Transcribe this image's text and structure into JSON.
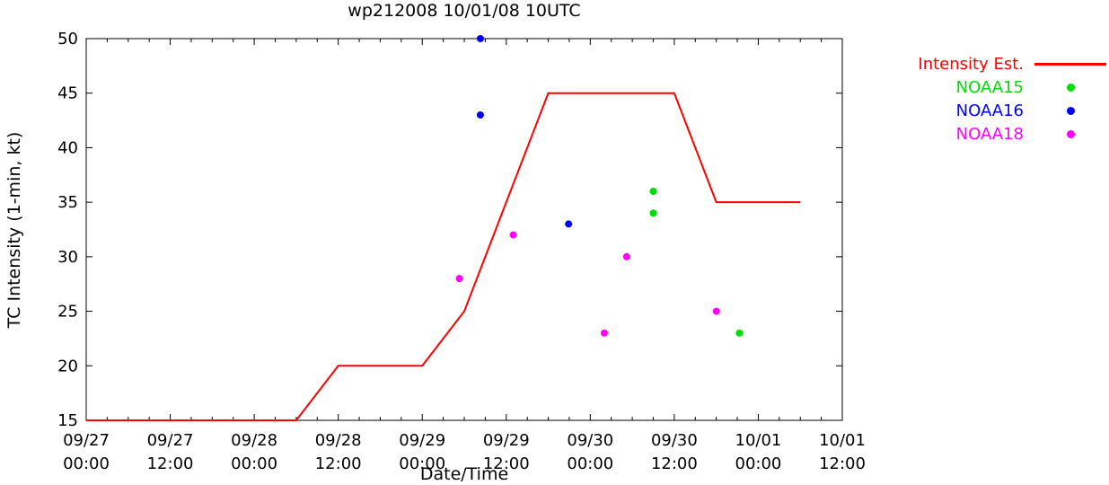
{
  "chart_data": {
    "type": "line+scatter",
    "title": "wp212008 10/01/08 10UTC",
    "xlabel": "Date/Time",
    "ylabel": "TC Intensity (1-min, kt)",
    "x_unit": "hours since 09/27 00:00",
    "xlim": [
      0,
      108
    ],
    "ylim": [
      15,
      50
    ],
    "grid": false,
    "y_ticks": [
      15,
      20,
      25,
      30,
      35,
      40,
      45,
      50
    ],
    "x_minor_step": 3,
    "x_ticks": [
      {
        "hour": 0,
        "label": "09/27 00:00"
      },
      {
        "hour": 12,
        "label": "09/27 12:00"
      },
      {
        "hour": 24,
        "label": "09/28 00:00"
      },
      {
        "hour": 36,
        "label": "09/28 12:00"
      },
      {
        "hour": 48,
        "label": "09/29 00:00"
      },
      {
        "hour": 60,
        "label": "09/29 12:00"
      },
      {
        "hour": 72,
        "label": "09/30 00:00"
      },
      {
        "hour": 84,
        "label": "09/30 12:00"
      },
      {
        "hour": 96,
        "label": "10/01 00:00"
      },
      {
        "hour": 108,
        "label": "10/01 12:00"
      }
    ],
    "series": [
      {
        "name": "Intensity Est.",
        "type": "line",
        "color": "#ff0000",
        "points": [
          [
            0,
            15
          ],
          [
            30,
            15
          ],
          [
            36,
            20
          ],
          [
            48,
            20
          ],
          [
            54,
            25
          ],
          [
            66,
            45
          ],
          [
            84,
            45
          ],
          [
            90,
            35
          ],
          [
            102,
            35
          ]
        ]
      },
      {
        "name": "NOAA15",
        "type": "scatter",
        "color": "#00dd00",
        "points": [
          [
            81,
            36
          ],
          [
            81,
            34
          ],
          [
            93.3,
            23
          ]
        ]
      },
      {
        "name": "NOAA16",
        "type": "scatter",
        "color": "#0000ff",
        "points": [
          [
            56.3,
            50
          ],
          [
            56.3,
            43
          ],
          [
            68.9,
            33
          ]
        ]
      },
      {
        "name": "NOAA18",
        "type": "scatter",
        "color": "#ff00ff",
        "points": [
          [
            53.3,
            28
          ],
          [
            61,
            32
          ],
          [
            74,
            23
          ],
          [
            77.2,
            30
          ],
          [
            90,
            25
          ]
        ]
      }
    ]
  },
  "legend": {
    "entries": [
      {
        "label": "Intensity Est.",
        "color": "#ff0000",
        "sample": "line"
      },
      {
        "label": "NOAA15",
        "color": "#00dd00",
        "sample": "dot"
      },
      {
        "label": "NOAA16",
        "color": "#0000ff",
        "sample": "dot"
      },
      {
        "label": "NOAA18",
        "color": "#ff00ff",
        "sample": "dot"
      }
    ]
  }
}
